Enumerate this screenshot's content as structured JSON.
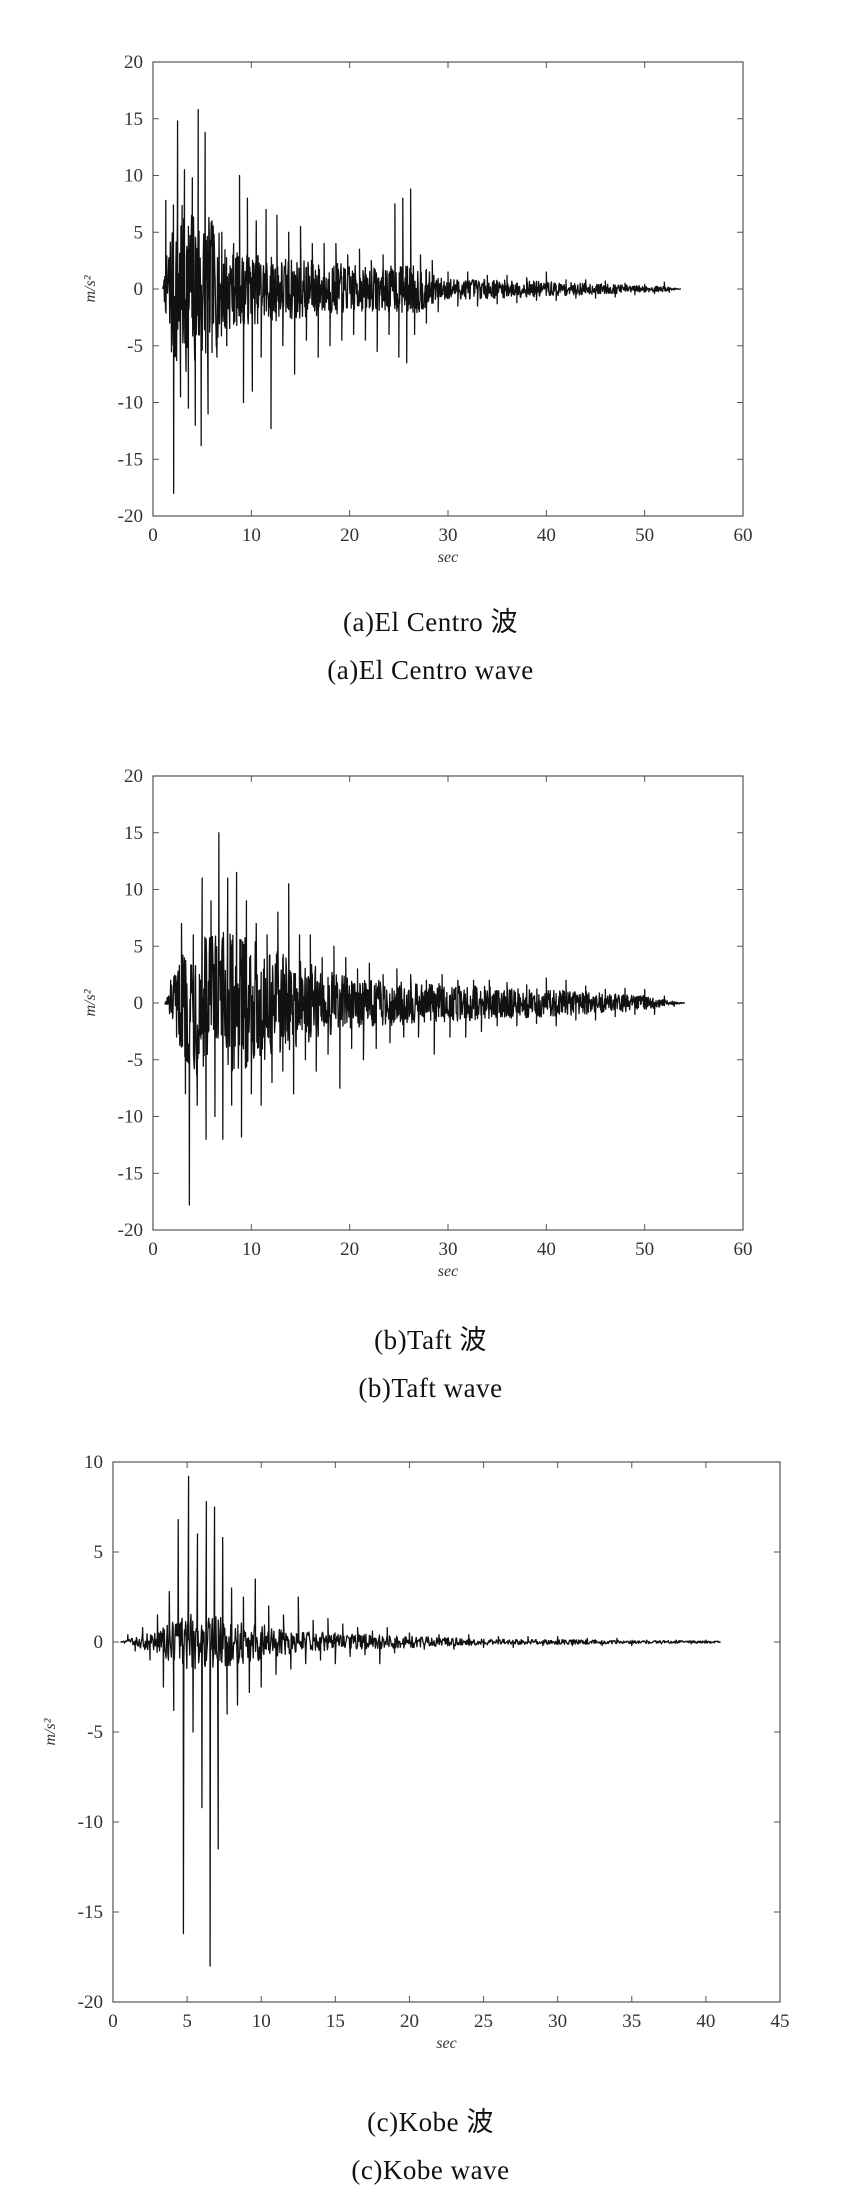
{
  "figures": [
    {
      "caption_cn": "(a)El Centro 波",
      "caption_en": "(a)El Centro wave",
      "chart_data": {
        "type": "line",
        "series": [
          {
            "x": [],
            "y": []
          }
        ],
        "duration": 53.7,
        "xlabel": "sec",
        "ylabel": "m/s²",
        "xlim": [
          0,
          60
        ],
        "ylim": [
          -20,
          20
        ],
        "xticks": [
          "0",
          "10",
          "20",
          "30",
          "40",
          "50",
          "60"
        ],
        "yticks": [
          "20",
          "15",
          "10",
          "5",
          "0",
          "-5",
          "-10",
          "-15",
          "-20"
        ],
        "peaks": [
          [
            1.0,
            0
          ],
          [
            1.3,
            7.8
          ],
          [
            1.7,
            -3
          ],
          [
            2.1,
            -18
          ],
          [
            2.5,
            14.8
          ],
          [
            2.8,
            -9.5
          ],
          [
            3.2,
            10.5
          ],
          [
            3.6,
            -10.5
          ],
          [
            4.0,
            9.8
          ],
          [
            4.3,
            -12
          ],
          [
            4.6,
            15.8
          ],
          [
            4.9,
            -13.8
          ],
          [
            5.3,
            13.8
          ],
          [
            5.6,
            -11
          ],
          [
            6.0,
            6
          ],
          [
            6.5,
            -6
          ],
          [
            7.0,
            5
          ],
          [
            7.5,
            -5
          ],
          [
            8.2,
            4
          ],
          [
            8.8,
            10
          ],
          [
            9.2,
            -10
          ],
          [
            9.6,
            8
          ],
          [
            10.1,
            -9
          ],
          [
            10.5,
            6
          ],
          [
            11.0,
            -6
          ],
          [
            11.5,
            7
          ],
          [
            12.0,
            -12.3
          ],
          [
            12.6,
            6.5
          ],
          [
            13.2,
            -5
          ],
          [
            13.8,
            5
          ],
          [
            14.4,
            -7.5
          ],
          [
            15.0,
            5.5
          ],
          [
            15.6,
            -4.5
          ],
          [
            16.2,
            4
          ],
          [
            16.8,
            -6
          ],
          [
            17.4,
            4
          ],
          [
            18.0,
            -5
          ],
          [
            18.6,
            4
          ],
          [
            19.2,
            -4.5
          ],
          [
            19.8,
            3
          ],
          [
            20.4,
            -4
          ],
          [
            21.0,
            3.5
          ],
          [
            21.6,
            -4.5
          ],
          [
            22.2,
            2.5
          ],
          [
            22.8,
            -5.5
          ],
          [
            23.4,
            3
          ],
          [
            24.0,
            -4
          ],
          [
            24.6,
            7.5
          ],
          [
            25.0,
            -6
          ],
          [
            25.4,
            8
          ],
          [
            25.8,
            -6.5
          ],
          [
            26.2,
            8.8
          ],
          [
            26.6,
            -4
          ],
          [
            27.2,
            3
          ],
          [
            27.8,
            -3
          ],
          [
            28.4,
            2.5
          ],
          [
            29.0,
            -2
          ],
          [
            30.0,
            1.5
          ],
          [
            31.0,
            -1.5
          ],
          [
            32.0,
            1.5
          ],
          [
            33.0,
            -1.5
          ],
          [
            34.0,
            1.2
          ],
          [
            35.0,
            -1.3
          ],
          [
            36.0,
            1.2
          ],
          [
            37.0,
            -1.2
          ],
          [
            38.0,
            1
          ],
          [
            39.0,
            -1
          ],
          [
            40.0,
            1.5
          ],
          [
            41.0,
            -1
          ],
          [
            42.0,
            0.8
          ],
          [
            43.0,
            -0.8
          ],
          [
            44.0,
            0.8
          ],
          [
            45.0,
            -0.8
          ],
          [
            46.0,
            0.7
          ],
          [
            47.0,
            -0.7
          ],
          [
            48.0,
            0.5
          ],
          [
            49.0,
            -0.5
          ],
          [
            50.0,
            0.4
          ],
          [
            51.0,
            -0.4
          ],
          [
            52.0,
            0.6
          ],
          [
            52.5,
            -0.3
          ],
          [
            53.7,
            0
          ]
        ],
        "noise_amplitude": [
          [
            1.0,
            0
          ],
          [
            2.0,
            14
          ],
          [
            5.5,
            12
          ],
          [
            8.0,
            6
          ],
          [
            14.0,
            5
          ],
          [
            22.0,
            3.5
          ],
          [
            27.0,
            4
          ],
          [
            29.0,
            1.8
          ],
          [
            40.0,
            1.2
          ],
          [
            52.0,
            0.4
          ],
          [
            53.7,
            0
          ]
        ]
      }
    },
    {
      "caption_cn": "(b)Taft 波",
      "caption_en": "(b)Taft wave",
      "chart_data": {
        "type": "line",
        "series": [
          {
            "x": [],
            "y": []
          }
        ],
        "duration": 54.1,
        "xlabel": "sec",
        "ylabel": "m/s²",
        "xlim": [
          0,
          60
        ],
        "ylim": [
          -20,
          20
        ],
        "xticks": [
          "0",
          "10",
          "20",
          "30",
          "40",
          "50",
          "60"
        ],
        "yticks": [
          "20",
          "15",
          "10",
          "5",
          "0",
          "-5",
          "-10",
          "-15",
          "-20"
        ],
        "peaks": [
          [
            1.2,
            0
          ],
          [
            1.8,
            2
          ],
          [
            2.4,
            -3
          ],
          [
            2.9,
            7
          ],
          [
            3.3,
            -8
          ],
          [
            3.7,
            -17.8
          ],
          [
            4.1,
            6
          ],
          [
            4.5,
            -9
          ],
          [
            5.0,
            11
          ],
          [
            5.4,
            -12
          ],
          [
            5.9,
            9
          ],
          [
            6.3,
            -10
          ],
          [
            6.7,
            15
          ],
          [
            7.1,
            -12
          ],
          [
            7.6,
            11
          ],
          [
            8.0,
            -9
          ],
          [
            8.5,
            11.5
          ],
          [
            9.0,
            -11.8
          ],
          [
            9.5,
            9
          ],
          [
            10.0,
            -8
          ],
          [
            10.5,
            7
          ],
          [
            11.0,
            -9
          ],
          [
            11.6,
            6
          ],
          [
            12.1,
            -7
          ],
          [
            12.7,
            8
          ],
          [
            13.2,
            -6
          ],
          [
            13.8,
            10.5
          ],
          [
            14.3,
            -8
          ],
          [
            14.9,
            6
          ],
          [
            15.5,
            -5
          ],
          [
            16.0,
            6
          ],
          [
            16.6,
            -6
          ],
          [
            17.2,
            4
          ],
          [
            17.8,
            -4.5
          ],
          [
            18.4,
            5
          ],
          [
            19.0,
            -7.5
          ],
          [
            19.6,
            4
          ],
          [
            20.2,
            -4
          ],
          [
            20.8,
            3
          ],
          [
            21.4,
            -5
          ],
          [
            22.0,
            3.5
          ],
          [
            22.7,
            -4
          ],
          [
            23.4,
            2.5
          ],
          [
            24.1,
            -3.5
          ],
          [
            24.8,
            3
          ],
          [
            25.5,
            -3
          ],
          [
            26.2,
            2.5
          ],
          [
            27.0,
            -3
          ],
          [
            27.8,
            2
          ],
          [
            28.6,
            -4.5
          ],
          [
            29.4,
            2.5
          ],
          [
            30.2,
            -3
          ],
          [
            31.0,
            2
          ],
          [
            31.8,
            -3
          ],
          [
            32.6,
            2
          ],
          [
            33.4,
            -2.5
          ],
          [
            34.2,
            2
          ],
          [
            35.0,
            -2
          ],
          [
            36.0,
            1.8
          ],
          [
            37.0,
            -2
          ],
          [
            38.0,
            1.6
          ],
          [
            39.0,
            -1.8
          ],
          [
            40.0,
            2.2
          ],
          [
            41.0,
            -2
          ],
          [
            42.0,
            2
          ],
          [
            43.0,
            -1.5
          ],
          [
            44.0,
            1.5
          ],
          [
            45.0,
            -1.5
          ],
          [
            46.0,
            1.2
          ],
          [
            47.0,
            -1.2
          ],
          [
            48.0,
            1.3
          ],
          [
            49.0,
            -1
          ],
          [
            50.0,
            1.2
          ],
          [
            51.0,
            -1
          ],
          [
            52.0,
            0.6
          ],
          [
            53.0,
            -0.3
          ],
          [
            54.1,
            0
          ]
        ],
        "noise_amplitude": [
          [
            1.2,
            0
          ],
          [
            2.5,
            6
          ],
          [
            4.0,
            12
          ],
          [
            9.0,
            11
          ],
          [
            13.0,
            8
          ],
          [
            20.0,
            4
          ],
          [
            30.0,
            3
          ],
          [
            40.0,
            2.2
          ],
          [
            50.0,
            1.2
          ],
          [
            52.0,
            0.5
          ],
          [
            54.1,
            0
          ]
        ]
      }
    },
    {
      "caption_cn": "(c)Kobe 波",
      "caption_en": "(c)Kobe wave",
      "chart_data": {
        "type": "line",
        "series": [
          {
            "x": [],
            "y": []
          }
        ],
        "duration": 41,
        "xlabel": "sec",
        "ylabel": "m/s²",
        "xlim": [
          0,
          45
        ],
        "ylim": [
          -20,
          10
        ],
        "xticks": [
          "0",
          "5",
          "10",
          "15",
          "20",
          "25",
          "30",
          "35",
          "40",
          "45"
        ],
        "yticks": [
          "10",
          "5",
          "0",
          "-5",
          "-10",
          "-15",
          "-20"
        ],
        "peaks": [
          [
            0.5,
            0
          ],
          [
            1.0,
            0.4
          ],
          [
            1.5,
            -0.5
          ],
          [
            2.0,
            0.8
          ],
          [
            2.5,
            -1.0
          ],
          [
            3.0,
            1.5
          ],
          [
            3.4,
            -2.5
          ],
          [
            3.8,
            2.8
          ],
          [
            4.1,
            -3.8
          ],
          [
            4.4,
            6.8
          ],
          [
            4.75,
            -16.2
          ],
          [
            5.1,
            9.2
          ],
          [
            5.4,
            -5
          ],
          [
            5.7,
            6
          ],
          [
            6.0,
            -9.2
          ],
          [
            6.3,
            7.8
          ],
          [
            6.55,
            -18
          ],
          [
            6.85,
            7.5
          ],
          [
            7.1,
            -11.5
          ],
          [
            7.4,
            5.8
          ],
          [
            7.7,
            -4
          ],
          [
            8.0,
            3
          ],
          [
            8.4,
            -3.5
          ],
          [
            8.8,
            2.5
          ],
          [
            9.2,
            -2.8
          ],
          [
            9.6,
            3.5
          ],
          [
            10.0,
            -2.5
          ],
          [
            10.5,
            2
          ],
          [
            11.0,
            -1.8
          ],
          [
            11.5,
            1.5
          ],
          [
            12.0,
            -1.5
          ],
          [
            12.5,
            2.5
          ],
          [
            13.0,
            -1.2
          ],
          [
            13.5,
            1.2
          ],
          [
            14.0,
            -1
          ],
          [
            14.5,
            1.3
          ],
          [
            15.0,
            -1.2
          ],
          [
            15.5,
            1
          ],
          [
            16.0,
            -0.8
          ],
          [
            16.5,
            0.8
          ],
          [
            17.0,
            -0.7
          ],
          [
            17.5,
            0.6
          ],
          [
            18.0,
            -1.2
          ],
          [
            18.5,
            0.8
          ],
          [
            19.0,
            -0.6
          ],
          [
            20.0,
            0.5
          ],
          [
            21.0,
            -0.4
          ],
          [
            22.0,
            0.4
          ],
          [
            23.0,
            -0.4
          ],
          [
            24.0,
            0.4
          ],
          [
            25.0,
            -0.3
          ],
          [
            26.0,
            0.3
          ],
          [
            27.0,
            -0.3
          ],
          [
            28.0,
            0.3
          ],
          [
            29.0,
            -0.2
          ],
          [
            30.0,
            0.3
          ],
          [
            31.0,
            -0.2
          ],
          [
            32.0,
            0.2
          ],
          [
            33.0,
            -0.2
          ],
          [
            34.0,
            0.2
          ],
          [
            35.0,
            -0.2
          ],
          [
            36.0,
            0.1
          ],
          [
            37.0,
            -0.1
          ],
          [
            38.0,
            0.1
          ],
          [
            39.0,
            -0.1
          ],
          [
            40.0,
            0.1
          ],
          [
            41.0,
            0
          ]
        ],
        "noise_amplitude": [
          [
            0.5,
            0
          ],
          [
            3.0,
            1.2
          ],
          [
            5.0,
            3
          ],
          [
            8.0,
            2.5
          ],
          [
            12.0,
            1.2
          ],
          [
            18.0,
            0.7
          ],
          [
            25.0,
            0.3
          ],
          [
            41.0,
            0.1
          ]
        ]
      }
    }
  ]
}
